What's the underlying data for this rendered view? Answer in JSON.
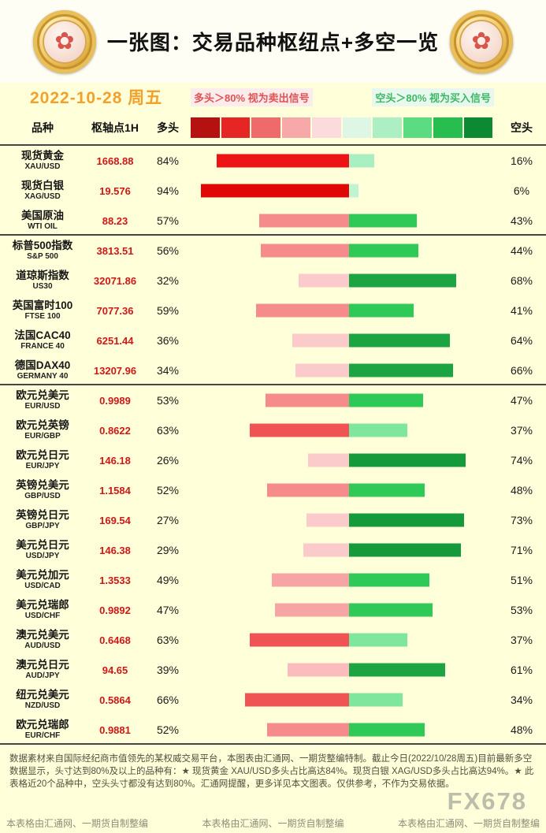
{
  "header": {
    "title": "一张图：交易品种枢纽点+多空一览",
    "date": "2022-10-28 周五"
  },
  "legend": {
    "long_note": "多头＞80% 视为卖出信号",
    "short_note": "空头＞80% 视为买入信号",
    "scale_colors": [
      "#b61111",
      "#e62525",
      "#ef6b6b",
      "#f7a8a8",
      "#fbdbdb",
      "#def7e5",
      "#abefc2",
      "#5bdc83",
      "#28bd4f",
      "#0b8a33"
    ]
  },
  "columns": {
    "instrument": "品种",
    "pivot": "枢轴点1H",
    "long": "多头",
    "short": "空头"
  },
  "bar_colors": {
    "long": [
      {
        "min": 90,
        "color": "#e00707"
      },
      {
        "min": 80,
        "color": "#ec1414"
      },
      {
        "min": 60,
        "color": "#f05353"
      },
      {
        "min": 50,
        "color": "#f58b8b"
      },
      {
        "min": 45,
        "color": "#f7a4a4"
      },
      {
        "min": 38,
        "color": "#fabcbc"
      },
      {
        "min": 0,
        "color": "#fbcaca"
      }
    ],
    "short": [
      {
        "min": 70,
        "color": "#149a3a"
      },
      {
        "min": 60,
        "color": "#1ca443"
      },
      {
        "min": 40,
        "color": "#2ec956"
      },
      {
        "min": 30,
        "color": "#7fe69e"
      },
      {
        "min": 10,
        "color": "#a9efc1"
      },
      {
        "min": 0,
        "color": "#bff4d1"
      }
    ]
  },
  "chart_data": {
    "type": "bar",
    "title": "一张图：交易品种枢纽点+多空一览",
    "date": "2022-10-28 周五",
    "series_names": [
      "多头",
      "空头"
    ],
    "unit": "%",
    "rows": [
      {
        "name": "现货黄金",
        "code": "XAU/USD",
        "pivot": "1668.88",
        "long": 84,
        "short": 16,
        "group_end": false
      },
      {
        "name": "现货白银",
        "code": "XAG/USD",
        "pivot": "19.576",
        "long": 94,
        "short": 6,
        "group_end": false
      },
      {
        "name": "美国原油",
        "code": "WTI OIL",
        "pivot": "88.23",
        "long": 57,
        "short": 43,
        "group_end": true
      },
      {
        "name": "标普500指数",
        "code": "S&P 500",
        "pivot": "3813.51",
        "long": 56,
        "short": 44,
        "group_end": false
      },
      {
        "name": "道琼斯指数",
        "code": "US30",
        "pivot": "32071.86",
        "long": 32,
        "short": 68,
        "group_end": false
      },
      {
        "name": "英国富时100",
        "code": "FTSE 100",
        "pivot": "7077.36",
        "long": 59,
        "short": 41,
        "group_end": false
      },
      {
        "name": "法国CAC40",
        "code": "FRANCE 40",
        "pivot": "6251.44",
        "long": 36,
        "short": 64,
        "group_end": false
      },
      {
        "name": "德国DAX40",
        "code": "GERMANY 40",
        "pivot": "13207.96",
        "long": 34,
        "short": 66,
        "group_end": true
      },
      {
        "name": "欧元兑美元",
        "code": "EUR/USD",
        "pivot": "0.9989",
        "long": 53,
        "short": 47,
        "group_end": false
      },
      {
        "name": "欧元兑英镑",
        "code": "EUR/GBP",
        "pivot": "0.8622",
        "long": 63,
        "short": 37,
        "group_end": false
      },
      {
        "name": "欧元兑日元",
        "code": "EUR/JPY",
        "pivot": "146.18",
        "long": 26,
        "short": 74,
        "group_end": false
      },
      {
        "name": "英镑兑美元",
        "code": "GBP/USD",
        "pivot": "1.1584",
        "long": 52,
        "short": 48,
        "group_end": false
      },
      {
        "name": "英镑兑日元",
        "code": "GBP/JPY",
        "pivot": "169.54",
        "long": 27,
        "short": 73,
        "group_end": false
      },
      {
        "name": "美元兑日元",
        "code": "USD/JPY",
        "pivot": "146.38",
        "long": 29,
        "short": 71,
        "group_end": false
      },
      {
        "name": "美元兑加元",
        "code": "USD/CAD",
        "pivot": "1.3533",
        "long": 49,
        "short": 51,
        "group_end": false
      },
      {
        "name": "美元兑瑞郎",
        "code": "USD/CHF",
        "pivot": "0.9892",
        "long": 47,
        "short": 53,
        "group_end": false
      },
      {
        "name": "澳元兑美元",
        "code": "AUD/USD",
        "pivot": "0.6468",
        "long": 63,
        "short": 37,
        "group_end": false
      },
      {
        "name": "澳元兑日元",
        "code": "AUD/JPY",
        "pivot": "94.65",
        "long": 39,
        "short": 61,
        "group_end": false
      },
      {
        "name": "纽元兑美元",
        "code": "NZD/USD",
        "pivot": "0.5864",
        "long": 66,
        "short": 34,
        "group_end": false
      },
      {
        "name": "欧元兑瑞郎",
        "code": "EUR/CHF",
        "pivot": "0.9881",
        "long": 52,
        "short": 48,
        "group_end": true
      }
    ]
  },
  "footer": {
    "summary": "数据素材来自国际经纪商市值领先的某权威交易平台，本图表由汇通网、一期货整编特制。截止今日(2022/10/28周五)目前最新多空数据显示，头寸达到80%及以上的品种有：★ 现货黄金 XAU/USD多头占比高达84%。现货白银 XAG/USD多头占比高达94%。★ 此表格近20个品种中，空头头寸都没有达到80%。汇通网提醒，更多详见本文图表。仅供参考，不作为交易依据。",
    "credit_left": "本表格由汇通网、一期货自制整编",
    "credit_center": "本表格由汇通网、一期货自制整编",
    "credit_right": "本表格由汇通网、一期货自制整编",
    "watermark": "FX678"
  }
}
